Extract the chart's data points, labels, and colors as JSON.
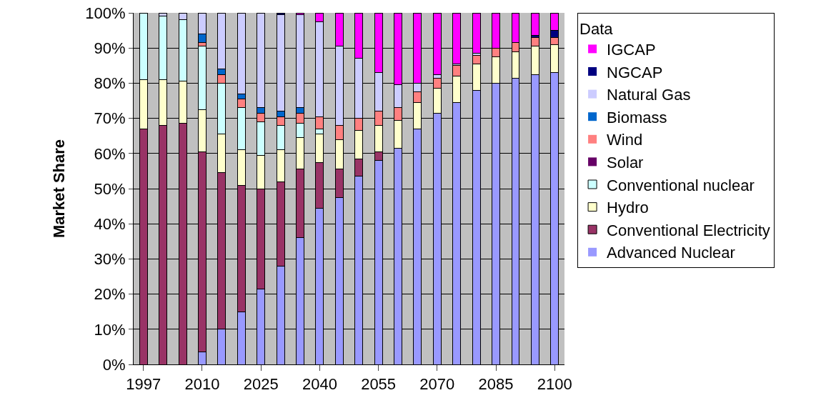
{
  "chart_data": {
    "type": "bar",
    "stacked": true,
    "ylabel": "Market Share",
    "legend_title": "Data",
    "legend": "right",
    "grid": "y",
    "ylim": [
      0,
      100
    ],
    "yticks": [
      {
        "value": 0,
        "label": "0%"
      },
      {
        "value": 10,
        "label": "10%"
      },
      {
        "value": 20,
        "label": "20%"
      },
      {
        "value": 30,
        "label": "30%"
      },
      {
        "value": 40,
        "label": "40%"
      },
      {
        "value": 50,
        "label": "50%"
      },
      {
        "value": 60,
        "label": "60%"
      },
      {
        "value": 70,
        "label": "70%"
      },
      {
        "value": 80,
        "label": "80%"
      },
      {
        "value": 90,
        "label": "90%"
      },
      {
        "value": 100,
        "label": "100%"
      }
    ],
    "categories": [
      "1997",
      null,
      null,
      "2010",
      null,
      null,
      "2025",
      null,
      null,
      "2040",
      null,
      null,
      "2055",
      null,
      null,
      "2070",
      null,
      null,
      "2085",
      null,
      null,
      "2100"
    ],
    "series": [
      {
        "name": "Advanced Nuclear",
        "color": "#9999ff",
        "values": [
          0,
          0,
          0,
          3.5,
          10,
          15,
          21.5,
          28,
          36,
          44.5,
          47.5,
          53.5,
          58,
          61.5,
          67,
          71.5,
          74.5,
          78,
          80,
          81.5,
          82.5,
          83
        ]
      },
      {
        "name": "Conventional Electricity",
        "color": "#993366",
        "values": [
          67,
          68,
          68.5,
          57,
          44.5,
          36,
          28.5,
          24,
          19.5,
          13,
          8,
          5,
          2.5,
          0,
          0,
          0,
          0,
          0,
          0,
          0,
          0,
          0
        ]
      },
      {
        "name": "Hydro",
        "color": "#ffffcc",
        "values": [
          14,
          13,
          12,
          12,
          11,
          10,
          9.5,
          9,
          9,
          8,
          8.5,
          8,
          7.5,
          8,
          7.5,
          7,
          7.5,
          7.5,
          7.5,
          7.5,
          8,
          8
        ]
      },
      {
        "name": "Conventional nuclear",
        "color": "#ccffff",
        "values": [
          19,
          18,
          17.5,
          18,
          14.5,
          12,
          9.5,
          7,
          4,
          1.5,
          0,
          0,
          0,
          0,
          0,
          0,
          0,
          0,
          0,
          0,
          0,
          0
        ]
      },
      {
        "name": "Solar",
        "color": "#660066",
        "values": [
          0,
          0,
          0,
          0,
          0,
          0,
          0,
          0,
          0,
          0,
          0,
          0,
          0,
          0,
          0,
          0,
          0,
          0,
          0,
          0,
          0,
          0
        ]
      },
      {
        "name": "Wind",
        "color": "#ff8080",
        "values": [
          0,
          0,
          0,
          1,
          2.5,
          2.5,
          2.5,
          2.5,
          3,
          3.5,
          4,
          3.5,
          4,
          3.5,
          3,
          3,
          3,
          2.5,
          2.5,
          2.5,
          2.5,
          2
        ]
      },
      {
        "name": "Biomass",
        "color": "#0066cc",
        "values": [
          0,
          0,
          0,
          2.5,
          1.5,
          1.5,
          1.5,
          1.5,
          1.5,
          0,
          0,
          0,
          0,
          0,
          0,
          0,
          0,
          0,
          0,
          0,
          0,
          0
        ]
      },
      {
        "name": "Natural Gas",
        "color": "#ccccff",
        "values": [
          0,
          1,
          2,
          6,
          16,
          23,
          27,
          27.5,
          26.5,
          27,
          22.5,
          17,
          11,
          6.5,
          2.5,
          1,
          0.5,
          0.5,
          0,
          0,
          0,
          0
        ]
      },
      {
        "name": "NGCAP",
        "color": "#000080",
        "values": [
          0,
          0,
          0,
          0,
          0,
          0,
          0,
          0.5,
          0,
          0,
          0,
          0,
          0,
          0,
          0,
          0,
          0,
          0,
          0,
          0,
          0.5,
          2
        ]
      },
      {
        "name": "IGCAP",
        "color": "#ff00ff",
        "values": [
          0,
          0,
          0,
          0,
          0,
          0,
          0,
          0,
          0.5,
          2.5,
          9.5,
          13,
          17,
          20.5,
          20,
          17.5,
          14.5,
          11.5,
          10,
          8.5,
          6.5,
          5
        ]
      }
    ]
  }
}
